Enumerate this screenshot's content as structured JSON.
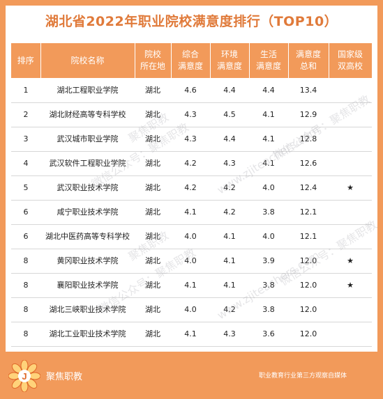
{
  "title": "湖北省2022年职业院校满意度排行（TOP10）",
  "table": {
    "headers": [
      "排序",
      "院校名称",
      "院校\n所在地",
      "综合\n满意度",
      "环境\n满意度",
      "生活\n满意度",
      "满意度\n总和",
      "国家级\n双高校"
    ],
    "rows": [
      [
        "1",
        "湖北工程职业学院",
        "湖北",
        "4.6",
        "4.4",
        "4.4",
        "13.4",
        ""
      ],
      [
        "2",
        "湖北财经高等专科学校",
        "湖北",
        "4.3",
        "4.5",
        "4.1",
        "12.9",
        ""
      ],
      [
        "3",
        "武汉城市职业学院",
        "湖北",
        "4.3",
        "4.4",
        "4.1",
        "12.8",
        ""
      ],
      [
        "4",
        "武汉软件工程职业学院",
        "湖北",
        "4.2",
        "4.3",
        "4.1",
        "12.6",
        ""
      ],
      [
        "5",
        "武汉职业技术学院",
        "湖北",
        "4.2",
        "4.2",
        "4.0",
        "12.4",
        "★"
      ],
      [
        "6",
        "咸宁职业技术学院",
        "湖北",
        "4.1",
        "4.2",
        "3.8",
        "12.1",
        ""
      ],
      [
        "6",
        "湖北中医药高等专科学校",
        "湖北",
        "4.0",
        "4.1",
        "4.0",
        "12.1",
        ""
      ],
      [
        "8",
        "黄冈职业技术学院",
        "湖北",
        "4.0",
        "4.1",
        "3.9",
        "12.0",
        "★"
      ],
      [
        "8",
        "襄阳职业技术学院",
        "湖北",
        "4.1",
        "4.1",
        "3.8",
        "12.0",
        "★"
      ],
      [
        "8",
        "湖北三峡职业技术学院",
        "湖北",
        "4.0",
        "4.2",
        "3.8",
        "12.0",
        ""
      ],
      [
        "8",
        "湖北工业职业技术学院",
        "湖北",
        "4.1",
        "4.3",
        "3.6",
        "12.0",
        ""
      ]
    ]
  },
  "watermarks": [
    "聚焦职教",
    "微信公众号：聚焦职教",
    "www.zjiteachers.com"
  ],
  "footer": {
    "brand": "聚焦职教",
    "slogan": "职业教育行业第三方观察自媒体",
    "logo_letter": "J"
  },
  "colors": {
    "accent": "#f29a5a",
    "title": "#e07a3a"
  }
}
